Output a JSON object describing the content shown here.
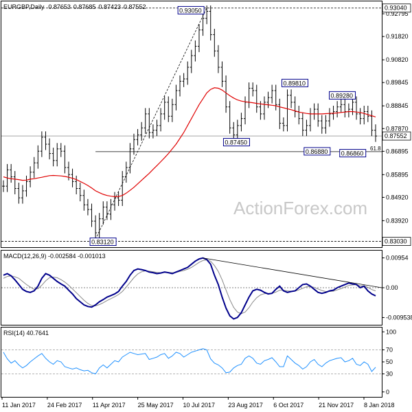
{
  "chart_data": {
    "type": "line",
    "header": {
      "symbol": "EURGBP,Daily",
      "o": "0.87653",
      "h": "0.87685",
      "l": "0.87423",
      "c": "0.87552"
    },
    "x_ticks": [
      "11 Jan 2017",
      "24 Feb 2017",
      "11 Apr 2017",
      "25 May 2017",
      "10 Jul 2017",
      "23 Aug 2017",
      "6 Oct 2017",
      "21 Nov 2017",
      "8 Jan 2018"
    ],
    "price": {
      "ylim": [
        0.829,
        0.9315
      ],
      "y_ticks": [
        "0.92795",
        "0.91820",
        "0.90820",
        "0.89845",
        "0.88845",
        "0.87870",
        "0.86895",
        "0.85895",
        "0.84920",
        "0.83920"
      ],
      "y_tick_values": [
        0.92795,
        0.9182,
        0.9082,
        0.89845,
        0.88845,
        0.8787,
        0.86895,
        0.85895,
        0.8492,
        0.8392
      ],
      "hlines": [
        {
          "label": "0.93040",
          "value": 0.9304,
          "style": "dashed"
        },
        {
          "label": "0.83030",
          "value": 0.8303,
          "style": "dashed"
        },
        {
          "label": "0.87552",
          "value": 0.87552,
          "style": "solid-gray"
        }
      ],
      "support_line": {
        "value": 0.8688,
        "from_index": 24,
        "to_index": 98
      },
      "fib_label": "61.8",
      "annotations": [
        {
          "label": "0.93050",
          "index": 53,
          "value": 0.9305
        },
        {
          "label": "0.83120",
          "index": 24,
          "value": 0.8312
        },
        {
          "label": "0.87450",
          "index": 62,
          "value": 0.8745
        },
        {
          "label": "0.89810",
          "index": 74,
          "value": 0.8981
        },
        {
          "label": "0.86880",
          "index": 78,
          "value": 0.8688
        },
        {
          "label": "0.89280",
          "index": 86,
          "value": 0.8928
        },
        {
          "label": "0.86860",
          "index": 88,
          "value": 0.8686
        }
      ],
      "trendline": {
        "from": {
          "index": 24,
          "value": 0.8312
        },
        "to": {
          "index": 53,
          "value": 0.9305
        }
      },
      "close": [
        0.854,
        0.861,
        0.858,
        0.853,
        0.849,
        0.852,
        0.856,
        0.86,
        0.864,
        0.869,
        0.875,
        0.872,
        0.868,
        0.865,
        0.87,
        0.869,
        0.862,
        0.859,
        0.856,
        0.853,
        0.85,
        0.846,
        0.844,
        0.839,
        0.834,
        0.84,
        0.845,
        0.842,
        0.846,
        0.849,
        0.848,
        0.858,
        0.862,
        0.87,
        0.874,
        0.876,
        0.879,
        0.885,
        0.877,
        0.878,
        0.88,
        0.885,
        0.89,
        0.884,
        0.889,
        0.895,
        0.899,
        0.9,
        0.905,
        0.91,
        0.914,
        0.921,
        0.926,
        0.929,
        0.919,
        0.912,
        0.905,
        0.899,
        0.888,
        0.879,
        0.876,
        0.88,
        0.883,
        0.89,
        0.896,
        0.895,
        0.888,
        0.885,
        0.89,
        0.892,
        0.895,
        0.889,
        0.881,
        0.88,
        0.893,
        0.89,
        0.886,
        0.883,
        0.878,
        0.88,
        0.885,
        0.887,
        0.882,
        0.879,
        0.882,
        0.885,
        0.886,
        0.888,
        0.889,
        0.886,
        0.887,
        0.89,
        0.885,
        0.883,
        0.886,
        0.884,
        0.878,
        0.8755
      ],
      "sma": [
        0.858,
        0.8575,
        0.8572,
        0.857,
        0.8568,
        0.8565,
        0.8566,
        0.857,
        0.8572,
        0.8575,
        0.8578,
        0.8582,
        0.8585,
        0.8586,
        0.8585,
        0.8584,
        0.8582,
        0.8578,
        0.8574,
        0.8568,
        0.856,
        0.8552,
        0.8543,
        0.8532,
        0.852,
        0.8512,
        0.8505,
        0.85,
        0.8497,
        0.8495,
        0.8496,
        0.85,
        0.851,
        0.8522,
        0.8535,
        0.855,
        0.8565,
        0.858,
        0.8595,
        0.8612,
        0.8628,
        0.8645,
        0.8662,
        0.868,
        0.87,
        0.872,
        0.8745,
        0.877,
        0.88,
        0.883,
        0.886,
        0.889,
        0.8915,
        0.894,
        0.8955,
        0.8962,
        0.896,
        0.8952,
        0.894,
        0.8928,
        0.8918,
        0.891,
        0.8905,
        0.8902,
        0.89,
        0.8898,
        0.8895,
        0.8893,
        0.8891,
        0.8889,
        0.8887,
        0.8885,
        0.888,
        0.8876,
        0.8872,
        0.8868,
        0.8863,
        0.8858,
        0.8855,
        0.8852,
        0.885,
        0.885,
        0.885,
        0.885,
        0.8851,
        0.8852,
        0.8853,
        0.8854,
        0.8856,
        0.8858,
        0.886,
        0.886,
        0.8858,
        0.8856,
        0.8852,
        0.8847,
        0.8842,
        0.8837
      ]
    },
    "macd": {
      "label": "MACD(12,26,9) -0.002584 -0.001013",
      "y_ticks": [
        "0.00954",
        "0.00",
        "-0.009538"
      ],
      "y_tick_values": [
        0.00954,
        0,
        -0.009538
      ],
      "ylim": [
        -0.0112,
        0.0112
      ],
      "line": [
        0.004,
        0.0045,
        0.0038,
        0.0025,
        0.001,
        -0.0005,
        -0.0012,
        -0.0015,
        -0.001,
        0.0005,
        0.003,
        0.0045,
        0.004,
        0.003,
        0.002,
        0.0012,
        0.0005,
        -0.0008,
        -0.002,
        -0.0035,
        -0.0045,
        -0.0055,
        -0.006,
        -0.0062,
        -0.0055,
        -0.0045,
        -0.0038,
        -0.003,
        -0.0025,
        -0.002,
        -0.0012,
        0.0005,
        0.002,
        0.004,
        0.0055,
        0.006,
        0.0058,
        0.0055,
        0.005,
        0.0048,
        0.0045,
        0.0047,
        0.005,
        0.0048,
        0.0045,
        0.005,
        0.0055,
        0.006,
        0.0065,
        0.0075,
        0.0085,
        0.0092,
        0.0095,
        0.009,
        0.0075,
        0.004,
        0.001,
        -0.003,
        -0.0065,
        -0.009,
        -0.01,
        -0.0095,
        -0.008,
        -0.0055,
        -0.003,
        -0.001,
        -0.0005,
        -0.0008,
        -0.0015,
        -0.002,
        -0.0018,
        -0.0005,
        0.0005,
        -0.001,
        -0.0015,
        -0.0012,
        -0.001,
        0.0,
        0.001,
        0.0012,
        0.0005,
        -0.0005,
        -0.0015,
        -0.0018,
        -0.0015,
        -0.001,
        -0.0008,
        0.0,
        0.0005,
        0.001,
        0.0015,
        0.0012,
        0.001,
        0.0,
        0.0005,
        -0.001,
        -0.002,
        -0.0026
      ],
      "signal": [
        0.003,
        0.0036,
        0.0038,
        0.0035,
        0.003,
        0.002,
        0.001,
        0.0002,
        -0.0005,
        -0.0003,
        0.0008,
        0.0022,
        0.0032,
        0.0034,
        0.0032,
        0.0026,
        0.0018,
        0.0008,
        -0.0004,
        -0.0016,
        -0.0028,
        -0.004,
        -0.005,
        -0.0057,
        -0.0058,
        -0.0054,
        -0.0048,
        -0.0041,
        -0.0035,
        -0.0029,
        -0.0022,
        -0.0012,
        0.0002,
        0.0017,
        0.0032,
        0.0044,
        0.0051,
        0.0054,
        0.0053,
        0.0051,
        0.0049,
        0.0048,
        0.0049,
        0.0049,
        0.0048,
        0.0049,
        0.0052,
        0.0055,
        0.0059,
        0.0065,
        0.0073,
        0.0081,
        0.0087,
        0.0089,
        0.0085,
        0.0071,
        0.0052,
        0.0025,
        -0.0007,
        -0.0038,
        -0.0063,
        -0.0078,
        -0.0083,
        -0.0078,
        -0.0064,
        -0.0046,
        -0.0032,
        -0.0023,
        -0.0019,
        -0.0018,
        -0.0018,
        -0.0014,
        -0.0008,
        -0.0008,
        -0.001,
        -0.0011,
        -0.0011,
        -0.0007,
        -0.0002,
        0.0003,
        0.0004,
        0.0001,
        -0.0004,
        -0.0009,
        -0.0012,
        -0.0012,
        -0.0011,
        -0.0007,
        -0.0003,
        0.0002,
        0.0007,
        0.0009,
        0.001,
        0.0006,
        0.0006,
        0.0001,
        -0.0006,
        -0.001
      ],
      "trendline": {
        "from": {
          "index": 52,
          "value": 0.0095
        },
        "to": {
          "index": 97,
          "value": 0.0
        }
      }
    },
    "rsi": {
      "label": "RSI(14) 40.7641",
      "y_ticks": [
        "100",
        "70",
        "50",
        "30",
        "0"
      ],
      "y_tick_values": [
        100,
        70,
        50,
        30,
        0
      ],
      "ylim": [
        -6,
        106
      ],
      "levels": [
        70,
        30
      ],
      "values": [
        66,
        55,
        48,
        52,
        45,
        40,
        44,
        50,
        55,
        60,
        64,
        56,
        50,
        46,
        52,
        50,
        42,
        40,
        38,
        40,
        37,
        35,
        36,
        32,
        30,
        40,
        45,
        40,
        46,
        52,
        50,
        58,
        62,
        66,
        64,
        62,
        63,
        64,
        54,
        56,
        58,
        62,
        64,
        56,
        60,
        66,
        64,
        58,
        62,
        66,
        68,
        70,
        72,
        70,
        55,
        48,
        45,
        40,
        32,
        33,
        40,
        44,
        46,
        56,
        60,
        56,
        48,
        46,
        52,
        54,
        57,
        50,
        42,
        42,
        60,
        54,
        48,
        44,
        38,
        42,
        50,
        54,
        46,
        42,
        48,
        52,
        54,
        56,
        57,
        50,
        52,
        56,
        46,
        44,
        50,
        46,
        34,
        41
      ]
    }
  },
  "watermark": "ActionForex.com",
  "colors": {
    "price": "#000000",
    "sma": "#e00000",
    "macd": "#00008b",
    "signal": "#888888",
    "rsi": "#1e90ff",
    "label_border": "#00008b"
  }
}
